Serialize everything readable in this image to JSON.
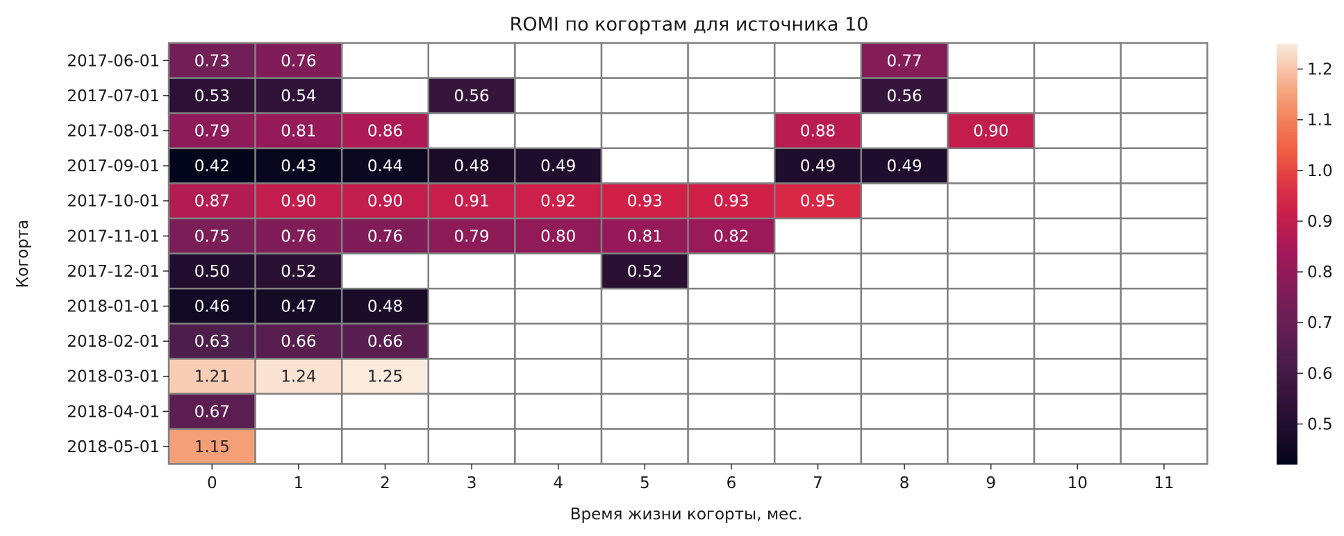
{
  "chart_data": {
    "type": "heatmap",
    "title": "ROMI по когортам для источника 10",
    "xlabel": "Время жизни когорты, мес.",
    "ylabel": "Когорта",
    "x": [
      "0",
      "1",
      "2",
      "3",
      "4",
      "5",
      "6",
      "7",
      "8",
      "9",
      "10",
      "11"
    ],
    "y": [
      "2017-06-01",
      "2017-07-01",
      "2017-08-01",
      "2017-09-01",
      "2017-10-01",
      "2017-11-01",
      "2017-12-01",
      "2018-01-01",
      "2018-02-01",
      "2018-03-01",
      "2018-04-01",
      "2018-05-01"
    ],
    "values": [
      [
        0.73,
        0.76,
        null,
        null,
        null,
        null,
        null,
        null,
        0.77,
        null,
        null,
        null
      ],
      [
        0.53,
        0.54,
        null,
        0.56,
        null,
        null,
        null,
        null,
        0.56,
        null,
        null,
        null
      ],
      [
        0.79,
        0.81,
        0.86,
        null,
        null,
        null,
        null,
        0.88,
        null,
        0.9,
        null,
        null
      ],
      [
        0.42,
        0.43,
        0.44,
        0.48,
        0.49,
        null,
        null,
        0.49,
        0.49,
        null,
        null,
        null
      ],
      [
        0.87,
        0.9,
        0.9,
        0.91,
        0.92,
        0.93,
        0.93,
        0.95,
        null,
        null,
        null,
        null
      ],
      [
        0.75,
        0.76,
        0.76,
        0.79,
        0.8,
        0.81,
        0.82,
        null,
        null,
        null,
        null,
        null
      ],
      [
        0.5,
        0.52,
        null,
        null,
        null,
        0.52,
        null,
        null,
        null,
        null,
        null,
        null
      ],
      [
        0.46,
        0.47,
        0.48,
        null,
        null,
        null,
        null,
        null,
        null,
        null,
        null,
        null
      ],
      [
        0.63,
        0.66,
        0.66,
        null,
        null,
        null,
        null,
        null,
        null,
        null,
        null,
        null
      ],
      [
        1.21,
        1.24,
        1.25,
        null,
        null,
        null,
        null,
        null,
        null,
        null,
        null,
        null
      ],
      [
        0.67,
        null,
        null,
        null,
        null,
        null,
        null,
        null,
        null,
        null,
        null,
        null
      ],
      [
        1.15,
        null,
        null,
        null,
        null,
        null,
        null,
        null,
        null,
        null,
        null,
        null
      ]
    ],
    "value_format": "2 decimals",
    "color_range": [
      0.42,
      1.25
    ],
    "colormap": "rocket",
    "colorbar_ticks": [
      0.5,
      0.6,
      0.7,
      0.8,
      0.9,
      1.0,
      1.1,
      1.2
    ],
    "colorbar_labels": [
      "0.5",
      "0.6",
      "0.7",
      "0.8",
      "0.9",
      "1.0",
      "1.1",
      "1.2"
    ],
    "cell_border_color": "#808080",
    "grid": false,
    "legend": "colorbar-right"
  }
}
